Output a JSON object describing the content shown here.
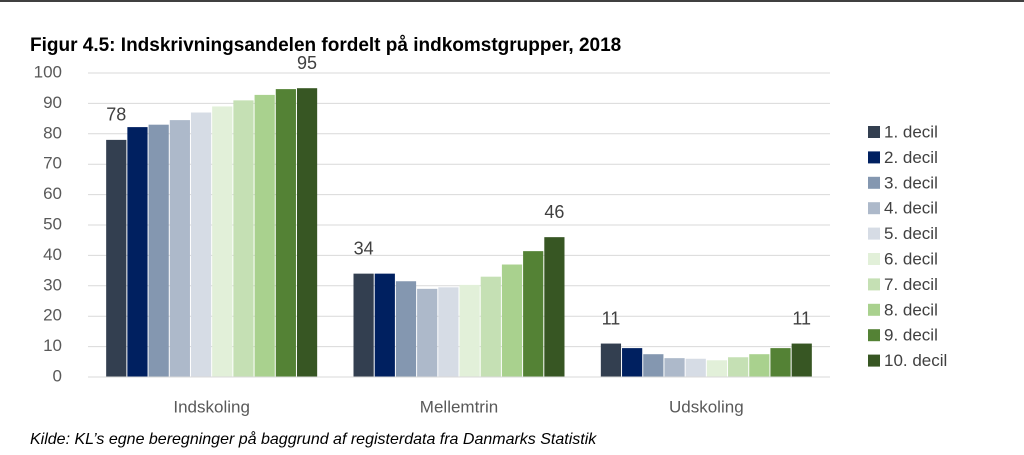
{
  "chart_data": {
    "type": "bar",
    "title": "Figur 4.5: Indskrivningsandelen fordelt på indkomstgrupper, 2018",
    "source": "Kilde: KL’s egne beregninger på baggrund af registerdata fra Danmarks Statistik",
    "categories": [
      "Indskoling",
      "Mellemtrin",
      "Udskoling"
    ],
    "series": [
      {
        "name": "1. decil",
        "color": "#333f50",
        "values": [
          78,
          34,
          11
        ],
        "show_labels": true
      },
      {
        "name": "2. decil",
        "color": "#002060",
        "values": [
          82.2,
          34,
          9.5
        ],
        "show_labels": false
      },
      {
        "name": "3. decil",
        "color": "#8497b0",
        "values": [
          83,
          31.5,
          7.5
        ],
        "show_labels": false
      },
      {
        "name": "4. decil",
        "color": "#adb9ca",
        "values": [
          84.5,
          29,
          6.2
        ],
        "show_labels": false
      },
      {
        "name": "5. decil",
        "color": "#d6dce5",
        "values": [
          87,
          29.5,
          6
        ],
        "show_labels": false
      },
      {
        "name": "6. decil",
        "color": "#e2f0d9",
        "values": [
          89,
          30.3,
          5.5
        ],
        "show_labels": false
      },
      {
        "name": "7. decil",
        "color": "#c5e0b4",
        "values": [
          91,
          33,
          6.5
        ],
        "show_labels": false
      },
      {
        "name": "8. decil",
        "color": "#a9d18e",
        "values": [
          92.8,
          37,
          7.5
        ],
        "show_labels": false
      },
      {
        "name": "9. decil",
        "color": "#548235",
        "values": [
          94.7,
          41.4,
          9.5
        ],
        "show_labels": false
      },
      {
        "name": "10. decil",
        "color": "#375623",
        "values": [
          95,
          46,
          11
        ],
        "show_labels": true
      }
    ],
    "ylim": [
      0,
      100
    ],
    "yticks": [
      0,
      10,
      20,
      30,
      40,
      50,
      60,
      70,
      80,
      90,
      100
    ],
    "grid": true,
    "legend": "right"
  }
}
